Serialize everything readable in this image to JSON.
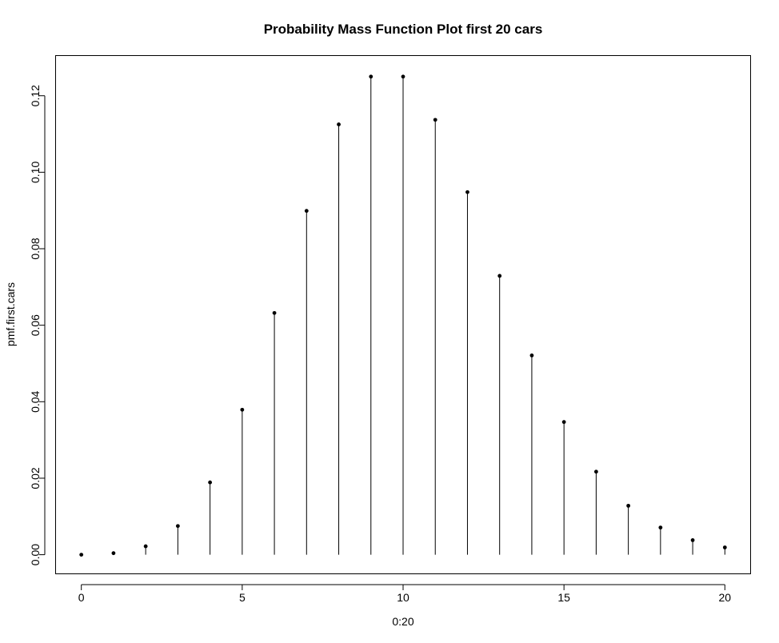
{
  "chart_data": {
    "type": "scatter",
    "style": "stem (type h) with points",
    "title": "Probability Mass Function Plot first 20 cars",
    "xlabel": "0:20",
    "ylabel": "pmf.first.cars",
    "x": [
      0,
      1,
      2,
      3,
      4,
      5,
      6,
      7,
      8,
      9,
      10,
      11,
      12,
      13,
      14,
      15,
      16,
      17,
      18,
      19,
      20
    ],
    "values": [
      0.0,
      0.0004,
      0.0022,
      0.0075,
      0.0189,
      0.0379,
      0.0632,
      0.0899,
      0.1125,
      0.125,
      0.125,
      0.1137,
      0.0948,
      0.0729,
      0.0521,
      0.0347,
      0.0217,
      0.0128,
      0.0071,
      0.0038,
      0.0019
    ],
    "xticks": [
      0,
      5,
      10,
      15,
      20
    ],
    "xtick_labels": [
      "0",
      "5",
      "10",
      "15",
      "20"
    ],
    "yticks": [
      0.0,
      0.02,
      0.04,
      0.06,
      0.08,
      0.1,
      0.12
    ],
    "ytick_labels": [
      "0.00",
      "0.02",
      "0.04",
      "0.06",
      "0.08",
      "0.10",
      "0.12"
    ],
    "xlim": [
      -0.8,
      20.8
    ],
    "ylim": [
      -0.005,
      0.1305
    ],
    "grid": false,
    "legend": "none",
    "colors": {
      "stems": "#000000",
      "points": "#000000",
      "background": "#ffffff"
    }
  }
}
